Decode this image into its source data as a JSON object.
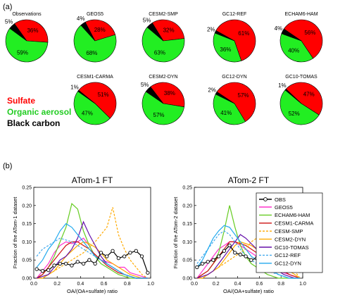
{
  "panel_labels": {
    "a": "(a)",
    "b": "(b)"
  },
  "legend_a": {
    "sulfate": "Sulfate",
    "organic": "Organic aerosol",
    "black_carbon": "Black carbon"
  },
  "colors": {
    "sulfate": "#ff0000",
    "organic": "#22ee22",
    "black_carbon": "#000000"
  },
  "chart_data": [
    {
      "type": "pie",
      "panel": "a",
      "components": [
        "Sulfate",
        "Organic aerosol",
        "Black carbon"
      ],
      "pies": [
        {
          "name": "Observations",
          "values": [
            36,
            59,
            5
          ],
          "labels": [
            "36%",
            "59%",
            "5%"
          ]
        },
        {
          "name": "GEOS5",
          "values": [
            28,
            68,
            4
          ],
          "labels": [
            "28%",
            "68%",
            "4%"
          ]
        },
        {
          "name": "CESM2-SMP",
          "values": [
            32,
            63,
            5
          ],
          "labels": [
            "32%",
            "63%",
            "5%"
          ]
        },
        {
          "name": "GC12-REF",
          "values": [
            61,
            36,
            2
          ],
          "labels": [
            "61%",
            "36%",
            "2%"
          ]
        },
        {
          "name": "ECHAM6-HAM",
          "values": [
            56,
            40,
            4
          ],
          "labels": [
            "56%",
            "40%",
            "4%"
          ]
        },
        {
          "name": "CESM1-CARMA",
          "values": [
            51,
            47,
            1
          ],
          "labels": [
            "51%",
            "47%",
            "1%"
          ]
        },
        {
          "name": "CESM2-DYN",
          "values": [
            38,
            57,
            5
          ],
          "labels": [
            "38%",
            "57%",
            "5%"
          ]
        },
        {
          "name": "GC12-DYN",
          "values": [
            57,
            41,
            2
          ],
          "labels": [
            "57%",
            "41%",
            "2%"
          ]
        },
        {
          "name": "GC10-TOMAS",
          "values": [
            47,
            52,
            1
          ],
          "labels": [
            "47%",
            "52%",
            "1%"
          ]
        }
      ]
    },
    {
      "type": "line",
      "panel": "b-left",
      "title": "ATom-1 FT",
      "xlabel": "OA/(OA+sulfate) ratio",
      "ylabel": "Fraction of the ATom-1 dataset",
      "xlim": [
        0,
        1
      ],
      "ylim": [
        0,
        0.25
      ],
      "xticks": [
        "0.0",
        "0.2",
        "0.4",
        "0.6",
        "0.8",
        "1.0"
      ],
      "yticks": [
        "0.00",
        "0.05",
        "0.10",
        "0.15",
        "0.20",
        "0.25"
      ],
      "x": [
        0.025,
        0.075,
        0.125,
        0.175,
        0.225,
        0.275,
        0.325,
        0.375,
        0.425,
        0.475,
        0.525,
        0.575,
        0.625,
        0.675,
        0.725,
        0.775,
        0.825,
        0.875,
        0.925,
        0.975
      ],
      "series": [
        {
          "name": "OBS",
          "values": [
            0.025,
            0.02,
            0.022,
            0.035,
            0.04,
            0.04,
            0.035,
            0.045,
            0.04,
            0.05,
            0.04,
            0.07,
            0.06,
            0.075,
            0.055,
            0.06,
            0.07,
            0.075,
            0.06,
            0.015
          ]
        },
        {
          "name": "GEOS5",
          "values": [
            0.0,
            0.02,
            0.04,
            0.07,
            0.09,
            0.1,
            0.095,
            0.1,
            0.11,
            0.09,
            0.06,
            0.05,
            0.045,
            0.04,
            0.03,
            0.03,
            0.015,
            0.01,
            0.005,
            0.0
          ]
        },
        {
          "name": "ECHAM6-HAM",
          "values": [
            0.0,
            0.01,
            0.03,
            0.06,
            0.1,
            0.14,
            0.205,
            0.19,
            0.13,
            0.09,
            0.06,
            0.04,
            0.03,
            0.02,
            0.01,
            0.005,
            0.0,
            0.0,
            0.0,
            0.0
          ]
        },
        {
          "name": "CESM1-CARMA",
          "values": [
            0.0,
            0.01,
            0.03,
            0.05,
            0.07,
            0.09,
            0.1,
            0.1,
            0.09,
            0.08,
            0.065,
            0.05,
            0.035,
            0.025,
            0.015,
            0.01,
            0.005,
            0.0,
            0.0,
            0.0
          ]
        },
        {
          "name": "CESM-SMP",
          "values": [
            0.0,
            0.0,
            0.01,
            0.02,
            0.03,
            0.04,
            0.05,
            0.06,
            0.07,
            0.085,
            0.1,
            0.12,
            0.14,
            0.195,
            0.12,
            0.08,
            0.05,
            0.03,
            0.01,
            0.0
          ]
        },
        {
          "name": "CESM2-DYN",
          "values": [
            0.0,
            0.0,
            0.01,
            0.02,
            0.04,
            0.06,
            0.075,
            0.09,
            0.1,
            0.095,
            0.085,
            0.07,
            0.05,
            0.04,
            0.03,
            0.02,
            0.01,
            0.005,
            0.0,
            0.0
          ]
        },
        {
          "name": "GC10-TOMAS",
          "values": [
            0.0,
            0.005,
            0.01,
            0.03,
            0.05,
            0.06,
            0.08,
            0.11,
            0.155,
            0.12,
            0.09,
            0.06,
            0.04,
            0.03,
            0.02,
            0.01,
            0.005,
            0.0,
            0.0,
            0.0
          ]
        },
        {
          "name": "GC12-REF",
          "values": [
            0.06,
            0.08,
            0.09,
            0.1,
            0.11,
            0.105,
            0.1,
            0.09,
            0.08,
            0.07,
            0.06,
            0.05,
            0.04,
            0.03,
            0.02,
            0.01,
            0.005,
            0.0,
            0.0,
            0.0
          ]
        },
        {
          "name": "GC12-DYN",
          "values": [
            0.03,
            0.05,
            0.08,
            0.1,
            0.13,
            0.15,
            0.14,
            0.12,
            0.1,
            0.08,
            0.06,
            0.05,
            0.04,
            0.03,
            0.02,
            0.01,
            0.005,
            0.0,
            0.0,
            0.0
          ]
        }
      ]
    },
    {
      "type": "line",
      "panel": "b-right",
      "title": "ATom-2 FT",
      "xlabel": "OA/(OA+sulfate) ratio",
      "ylabel": "Fraction of the ATom-2 dataset",
      "xlim": [
        0,
        1
      ],
      "ylim": [
        0,
        0.25
      ],
      "xticks": [
        "0.0",
        "0.2",
        "0.4",
        "0.6",
        "0.8",
        "1.0"
      ],
      "yticks": [
        "0.00",
        "0.05",
        "0.10",
        "0.15",
        "0.20",
        "0.25"
      ],
      "x": [
        0.025,
        0.075,
        0.125,
        0.175,
        0.225,
        0.275,
        0.325,
        0.375,
        0.425,
        0.475,
        0.525,
        0.575,
        0.625,
        0.675,
        0.725,
        0.775,
        0.825,
        0.875,
        0.925,
        0.975
      ],
      "series": [
        {
          "name": "OBS",
          "values": [
            0.03,
            0.04,
            0.045,
            0.05,
            0.06,
            0.075,
            0.09,
            0.07,
            0.065,
            0.06,
            0.05,
            0.055,
            0.06,
            0.05,
            0.045,
            0.04,
            0.04,
            0.035,
            0.03,
            0.02
          ]
        },
        {
          "name": "GEOS5",
          "values": [
            0.0,
            0.02,
            0.04,
            0.06,
            0.08,
            0.09,
            0.1,
            0.1,
            0.09,
            0.08,
            0.07,
            0.06,
            0.05,
            0.04,
            0.03,
            0.02,
            0.015,
            0.01,
            0.005,
            0.0
          ]
        },
        {
          "name": "ECHAM6-HAM",
          "values": [
            0.0,
            0.01,
            0.02,
            0.04,
            0.07,
            0.13,
            0.2,
            0.14,
            0.09,
            0.06,
            0.04,
            0.03,
            0.02,
            0.01,
            0.005,
            0.0,
            0.0,
            0.0,
            0.0,
            0.0
          ]
        },
        {
          "name": "CESM1-CARMA",
          "values": [
            0.0,
            0.01,
            0.02,
            0.04,
            0.06,
            0.08,
            0.1,
            0.1,
            0.095,
            0.09,
            0.08,
            0.07,
            0.06,
            0.05,
            0.04,
            0.03,
            0.02,
            0.01,
            0.005,
            0.0
          ]
        },
        {
          "name": "CESM-SMP",
          "values": [
            0.0,
            0.0,
            0.01,
            0.02,
            0.03,
            0.04,
            0.05,
            0.06,
            0.07,
            0.08,
            0.1,
            0.11,
            0.13,
            0.12,
            0.1,
            0.08,
            0.06,
            0.04,
            0.02,
            0.0
          ]
        },
        {
          "name": "CESM2-DYN",
          "values": [
            0.0,
            0.0,
            0.01,
            0.02,
            0.03,
            0.05,
            0.07,
            0.09,
            0.1,
            0.095,
            0.09,
            0.08,
            0.07,
            0.06,
            0.05,
            0.04,
            0.03,
            0.02,
            0.01,
            0.0
          ]
        },
        {
          "name": "GC10-TOMAS",
          "values": [
            0.0,
            0.005,
            0.01,
            0.02,
            0.04,
            0.06,
            0.08,
            0.1,
            0.12,
            0.11,
            0.095,
            0.08,
            0.06,
            0.04,
            0.03,
            0.02,
            0.01,
            0.005,
            0.0,
            0.0
          ]
        },
        {
          "name": "GC12-REF",
          "values": [
            0.04,
            0.06,
            0.08,
            0.1,
            0.12,
            0.13,
            0.12,
            0.1,
            0.08,
            0.06,
            0.05,
            0.04,
            0.03,
            0.02,
            0.015,
            0.01,
            0.005,
            0.0,
            0.0,
            0.0
          ]
        },
        {
          "name": "GC12-DYN",
          "values": [
            0.03,
            0.05,
            0.08,
            0.11,
            0.13,
            0.145,
            0.14,
            0.12,
            0.1,
            0.08,
            0.06,
            0.05,
            0.04,
            0.03,
            0.02,
            0.01,
            0.005,
            0.0,
            0.0,
            0.0
          ]
        }
      ]
    }
  ],
  "series_styles": {
    "OBS": {
      "color": "#000000",
      "dash": "none",
      "marker": "circle"
    },
    "GEOS5": {
      "color": "#ff33cc",
      "dash": "none"
    },
    "ECHAM6-HAM": {
      "color": "#66cc22",
      "dash": "none"
    },
    "CESM1-CARMA": {
      "color": "#cc1111",
      "dash": "none"
    },
    "CESM-SMP": {
      "color": "#ffaa00",
      "dash": "dashed"
    },
    "CESM2-DYN": {
      "color": "#ffaa00",
      "dash": "none"
    },
    "GC10-TOMAS": {
      "color": "#6611aa",
      "dash": "none"
    },
    "GC12-REF": {
      "color": "#44aaee",
      "dash": "dashed"
    },
    "GC12-DYN": {
      "color": "#22aaee",
      "dash": "none"
    }
  }
}
